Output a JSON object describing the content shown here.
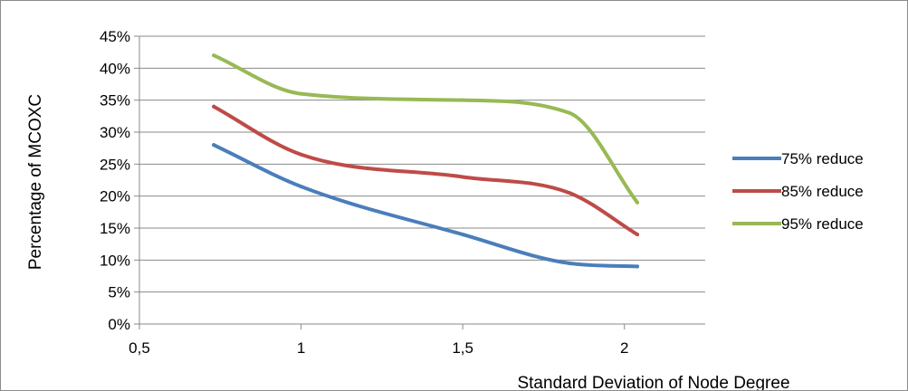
{
  "chart_data": {
    "type": "line",
    "xlabel": "Standard Deviation of Node Degree",
    "ylabel": "Percentage of MCOXC",
    "x_ticks": [
      "0,5",
      "1",
      "1,5",
      "2"
    ],
    "x_tick_values": [
      0.5,
      1,
      1.5,
      2
    ],
    "y_ticks": [
      "0%",
      "5%",
      "10%",
      "15%",
      "20%",
      "25%",
      "30%",
      "35%",
      "40%",
      "45%"
    ],
    "y_tick_values": [
      0,
      5,
      10,
      15,
      20,
      25,
      30,
      35,
      40,
      45
    ],
    "xlim": [
      0.5,
      2.25
    ],
    "ylim": [
      0,
      45
    ],
    "grid": "horizontal",
    "legend_position": "right",
    "x": [
      0.73,
      1.0,
      1.5,
      1.83,
      2.04
    ],
    "series": [
      {
        "name": "75% reduce",
        "color": "#4a7ebb",
        "values": [
          28,
          21.5,
          14,
          9.5,
          9
        ]
      },
      {
        "name": "85% reduce",
        "color": "#be4b48",
        "values": [
          34,
          26.5,
          23,
          20.5,
          14
        ]
      },
      {
        "name": "95% reduce",
        "color": "#98b954",
        "values": [
          42,
          36,
          35,
          33,
          19
        ]
      }
    ]
  }
}
